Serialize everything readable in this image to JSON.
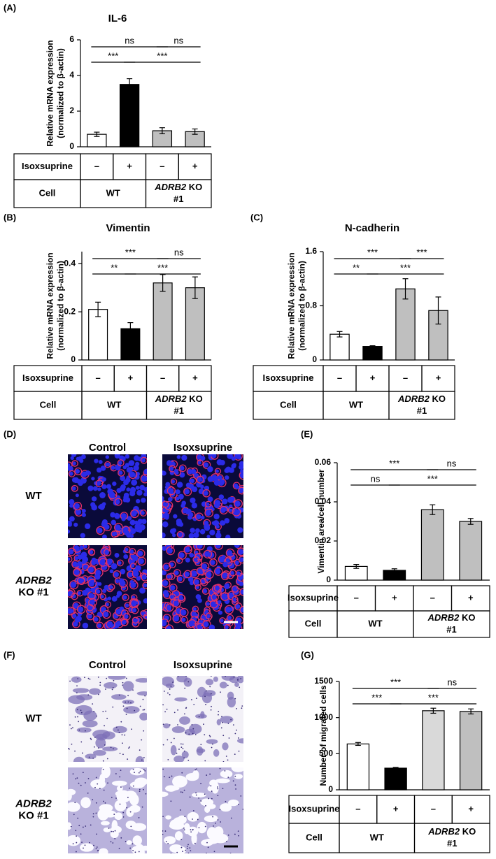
{
  "chart_data": [
    {
      "type": "bar",
      "panel": "(A)",
      "title": "IL-6",
      "y_label": [
        "Relative mRNA expression",
        "(normalized to β-actin)"
      ],
      "ylim": [
        0,
        6
      ],
      "yticks": [
        0,
        2,
        4,
        6
      ],
      "values": [
        0.7,
        3.5,
        0.9,
        0.85
      ],
      "errors": [
        0.12,
        0.32,
        0.17,
        0.15
      ],
      "colors": [
        "#ffffff",
        "#000000",
        "#bfbfbf",
        "#bfbfbf"
      ],
      "annotations": [
        "ns",
        "ns",
        "***",
        "***"
      ],
      "table": {
        "rows": [
          [
            "Isoxsuprine",
            "–",
            "+",
            "–",
            "+"
          ],
          [
            "Cell",
            "WT",
            "ADRB2 KO #1"
          ]
        ]
      }
    },
    {
      "type": "bar",
      "panel": "(B)",
      "title": "Vimentin",
      "y_label": [
        "Relative mRNA expression",
        "(normalized to β-actin)"
      ],
      "ylim": [
        0,
        0.45
      ],
      "yticks": [
        0,
        0.2,
        0.4
      ],
      "values": [
        0.21,
        0.13,
        0.32,
        0.3
      ],
      "errors": [
        0.03,
        0.025,
        0.035,
        0.045
      ],
      "colors": [
        "#ffffff",
        "#000000",
        "#bfbfbf",
        "#bfbfbf"
      ],
      "annotations": [
        "***",
        "ns",
        "**",
        "***"
      ],
      "table": {
        "rows": [
          [
            "Isoxsuprine",
            "–",
            "+",
            "–",
            "+"
          ],
          [
            "Cell",
            "WT",
            "ADRB2 KO #1"
          ]
        ]
      }
    },
    {
      "type": "bar",
      "panel": "(C)",
      "title": "N-cadherin",
      "y_label": [
        "Relative mRNA expression",
        "(normalized to β-actin)"
      ],
      "ylim": [
        0,
        1.6
      ],
      "yticks": [
        0,
        0.8,
        1.6
      ],
      "values": [
        0.38,
        0.2,
        1.05,
        0.73
      ],
      "errors": [
        0.04,
        0.01,
        0.15,
        0.2
      ],
      "colors": [
        "#ffffff",
        "#000000",
        "#bfbfbf",
        "#bfbfbf"
      ],
      "annotations": [
        "***",
        "***",
        "**",
        "***"
      ],
      "table": {
        "rows": [
          [
            "Isoxsuprine",
            "–",
            "+",
            "–",
            "+"
          ],
          [
            "Cell",
            "WT",
            "ADRB2 KO #1"
          ]
        ]
      }
    },
    {
      "type": "bar",
      "panel": "(E)",
      "y_label": [
        "Vimentin area/cell number"
      ],
      "ylim": [
        0,
        0.06
      ],
      "yticks": [
        0,
        0.02,
        0.04,
        0.06
      ],
      "values": [
        0.007,
        0.005,
        0.036,
        0.03
      ],
      "errors": [
        0.001,
        0.0008,
        0.0025,
        0.0015
      ],
      "colors": [
        "#ffffff",
        "#000000",
        "#bfbfbf",
        "#bfbfbf"
      ],
      "annotations": [
        "***",
        "ns",
        "ns",
        "***"
      ],
      "table": {
        "rows": [
          [
            "Isoxsuprine",
            "–",
            "+",
            "–",
            "+"
          ],
          [
            "Cell",
            "WT",
            "ADRB2 KO #1"
          ]
        ]
      }
    },
    {
      "type": "bar",
      "panel": "(G)",
      "y_label": [
        "Number of migrated cells"
      ],
      "ylim": [
        0,
        1500
      ],
      "yticks": [
        0,
        500,
        1000,
        1500
      ],
      "values": [
        635,
        300,
        1095,
        1085
      ],
      "errors": [
        20,
        10,
        35,
        35
      ],
      "colors": [
        "#ffffff",
        "#000000",
        "#d9d9d9",
        "#bfbfbf"
      ],
      "annotations": [
        "***",
        "ns",
        "***",
        "***"
      ],
      "table": {
        "rows": [
          [
            "Isoxsuprine",
            "–",
            "+",
            "–",
            "+"
          ],
          [
            "Cell",
            "WT",
            "ADRB2 KO #1"
          ]
        ]
      }
    }
  ],
  "image_panels": [
    {
      "panel": "(D)",
      "columns": [
        "Control",
        "Isoxsuprine"
      ],
      "rows": [
        "WT",
        "ADRB2 KO #1"
      ]
    },
    {
      "panel": "(F)",
      "columns": [
        "Control",
        "Isoxsuprine"
      ],
      "rows": [
        "WT",
        "ADRB2 KO #1"
      ]
    }
  ]
}
